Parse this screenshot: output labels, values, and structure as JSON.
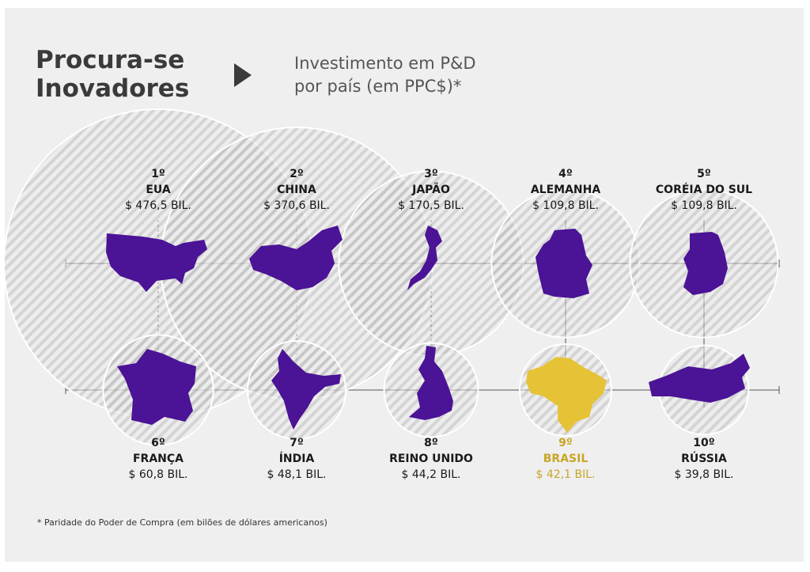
{
  "header": {
    "title_line1": "Procura-se",
    "title_line2": "Inovadores",
    "subtitle_line1": "Investimento em P&D",
    "subtitle_line2": "por país (em PPC$)*"
  },
  "colors": {
    "country": "#4b1396",
    "highlight": "#e6c237",
    "highlight_text": "#c9a528",
    "hatch": "#bdbdbd"
  },
  "chart_data": {
    "type": "bubble",
    "unit": "$ bilhões (PPC)",
    "countries": [
      {
        "rank": "1º",
        "name": "EUA",
        "value_label": "$ 476,5 BIL.",
        "value": 476.5,
        "shape": "usa-shape",
        "highlight": false
      },
      {
        "rank": "2º",
        "name": "CHINA",
        "value_label": "$ 370,6 BIL.",
        "value": 370.6,
        "shape": "china-shape",
        "highlight": false
      },
      {
        "rank": "3º",
        "name": "JAPÃO",
        "value_label": "$ 170,5 BIL.",
        "value": 170.5,
        "shape": "japan-shape",
        "highlight": false
      },
      {
        "rank": "4º",
        "name": "ALEMANHA",
        "value_label": "$ 109,8 BIL.",
        "value": 109.8,
        "shape": "germany-shape",
        "highlight": false
      },
      {
        "rank": "5º",
        "name": "CORÉIA DO SUL",
        "value_label": "$ 109,8 BIL.",
        "value": 109.8,
        "shape": "korea-shape",
        "highlight": false
      },
      {
        "rank": "6º",
        "name": "FRANÇA",
        "value_label": "$ 60,8 BIL.",
        "value": 60.8,
        "shape": "france-shape",
        "highlight": false
      },
      {
        "rank": "7º",
        "name": "ÍNDIA",
        "value_label": "$ 48,1 BIL.",
        "value": 48.1,
        "shape": "india-shape",
        "highlight": false
      },
      {
        "rank": "8º",
        "name": "REINO UNIDO",
        "value_label": "$ 44,2 BIL.",
        "value": 44.2,
        "shape": "uk-shape",
        "highlight": false
      },
      {
        "rank": "9º",
        "name": "BRASIL",
        "value_label": "$ 42,1 BIL.",
        "value": 42.1,
        "shape": "brazil-shape",
        "highlight": true
      },
      {
        "rank": "10º",
        "name": "RÚSSIA",
        "value_label": "$ 39,8 BIL.",
        "value": 39.8,
        "shape": "russia-shape",
        "highlight": false
      }
    ]
  },
  "footnote": "* Paridade do Poder de Compra (em bilões de dólares americanos)"
}
